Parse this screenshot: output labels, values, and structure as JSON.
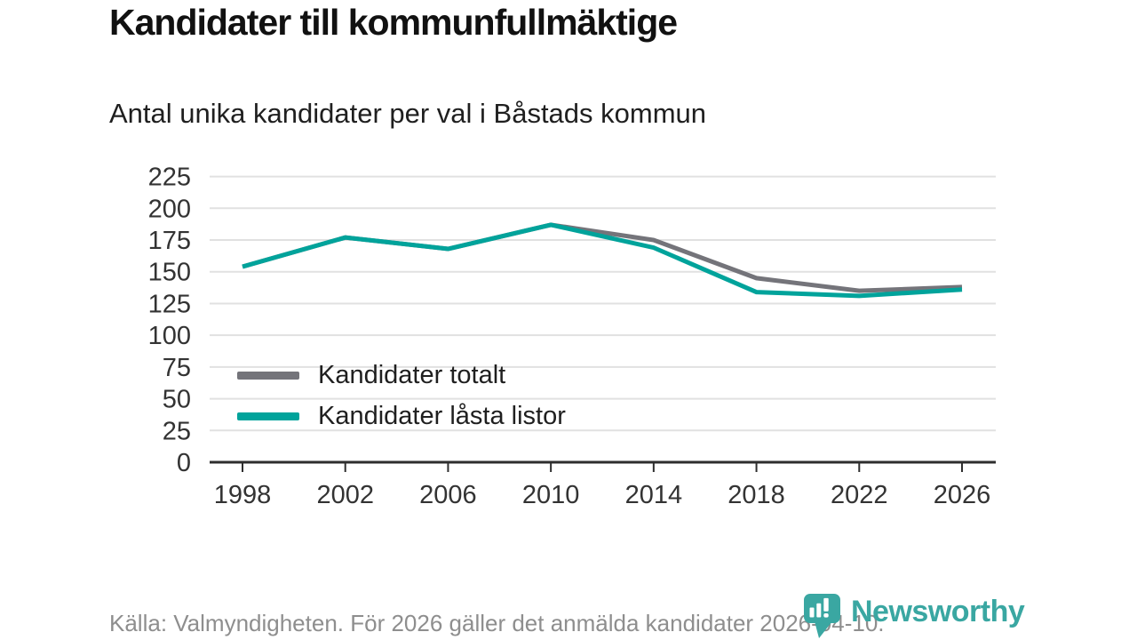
{
  "header": {
    "title": "Kandidater till kommunfullmäktige",
    "subtitle": "Antal unika kandidater per val i Båstads kommun"
  },
  "chart_data": {
    "type": "line",
    "title": "Kandidater till kommunfullmäktige",
    "subtitle": "Antal unika kandidater per val i Båstads kommun",
    "x": [
      "1998",
      "2002",
      "2006",
      "2010",
      "2014",
      "2018",
      "2022",
      "2026"
    ],
    "series": [
      {
        "name": "Kandidater totalt",
        "color": "#74747a",
        "values": [
          154,
          177,
          168,
          187,
          175,
          145,
          135,
          138
        ]
      },
      {
        "name": "Kandidater låsta listor",
        "color": "#00a39b",
        "values": [
          154,
          177,
          168,
          187,
          169,
          134,
          131,
          136
        ]
      }
    ],
    "ylim": [
      0,
      225
    ],
    "yticks": [
      0,
      25,
      50,
      75,
      100,
      125,
      150,
      175,
      200,
      225
    ],
    "grid": "horizontal",
    "legend_position": "inside bottom-left",
    "axis_color": "#2e2e2e",
    "gridline_color": "#e1e1e1",
    "tick_label_color": "#333333"
  },
  "footer": {
    "source_note": "Källa: Valmyndigheten. För 2026 gäller det anmälda kandidater 2026-04-10."
  },
  "branding": {
    "logo_text": "Newsworthy",
    "logo_color": "#3aa7a2",
    "logo_icon": "bar-chart-speech-bubble-icon"
  }
}
